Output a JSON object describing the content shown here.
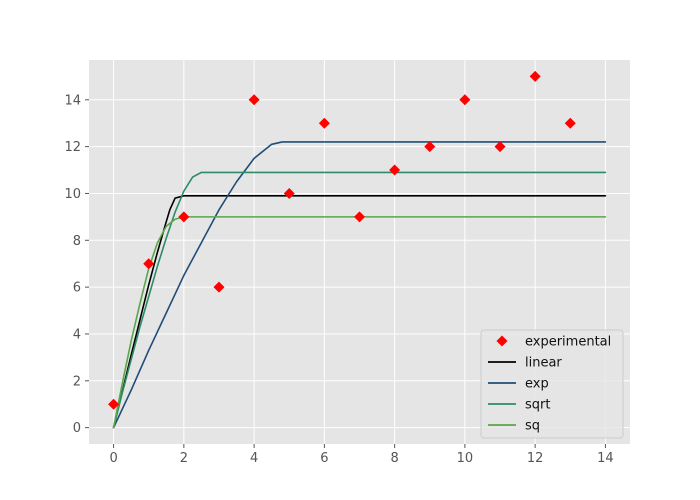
{
  "chart_data": {
    "type": "line",
    "title": "",
    "xlabel": "",
    "ylabel": "",
    "xlim": [
      -0.7,
      14.7
    ],
    "ylim": [
      -0.7,
      15.7
    ],
    "x_ticks": [
      0,
      2,
      4,
      6,
      8,
      10,
      12,
      14
    ],
    "y_ticks": [
      0,
      2,
      4,
      6,
      8,
      10,
      12,
      14
    ],
    "x_tick_labels": [
      "0",
      "2",
      "4",
      "6",
      "8",
      "10",
      "12",
      "14"
    ],
    "y_tick_labels": [
      "0",
      "2",
      "4",
      "6",
      "8",
      "10",
      "12",
      "14"
    ],
    "grid": true,
    "legend_position": "lower-right",
    "background_color": "#e5e5e5",
    "grid_color": "#ffffff",
    "scatter": {
      "name": "experimental",
      "color": "#ff0000",
      "marker": "diamond",
      "x": [
        0,
        1,
        2,
        3,
        4,
        5,
        6,
        7,
        8,
        9,
        10,
        11,
        12,
        13
      ],
      "y": [
        1,
        7,
        9,
        6,
        14,
        10,
        13,
        9,
        11,
        12,
        14,
        12,
        15,
        13
      ]
    },
    "series": [
      {
        "name": "linear",
        "color": "#000000",
        "x": [
          0,
          0.25,
          0.5,
          0.75,
          1,
          1.25,
          1.5,
          1.6,
          1.75,
          2,
          3,
          4,
          5,
          6,
          7,
          8,
          9,
          10,
          11,
          12,
          13,
          14
        ],
        "y": [
          0,
          1.55,
          3.1,
          4.6,
          6.1,
          7.5,
          8.8,
          9.3,
          9.8,
          9.9,
          9.9,
          9.9,
          9.9,
          9.9,
          9.9,
          9.9,
          9.9,
          9.9,
          9.9,
          9.9,
          9.9,
          9.9
        ]
      },
      {
        "name": "exp",
        "color": "#1f4e79",
        "x": [
          0,
          0.5,
          1,
          1.5,
          2,
          2.5,
          3,
          3.5,
          4,
          4.5,
          4.8,
          5,
          6,
          7,
          8,
          9,
          10,
          11,
          12,
          13,
          14
        ],
        "y": [
          0,
          1.6,
          3.3,
          4.9,
          6.5,
          7.9,
          9.3,
          10.5,
          11.5,
          12.1,
          12.2,
          12.2,
          12.2,
          12.2,
          12.2,
          12.2,
          12.2,
          12.2,
          12.2,
          12.2,
          12.2
        ]
      },
      {
        "name": "sqrt",
        "color": "#2e8b67",
        "x": [
          0,
          0.25,
          0.5,
          0.75,
          1,
          1.25,
          1.5,
          1.75,
          2,
          2.25,
          2.5,
          3,
          4,
          5,
          6,
          7,
          8,
          9,
          10,
          11,
          12,
          13,
          14
        ],
        "y": [
          0,
          1.5,
          2.9,
          4.3,
          5.6,
          6.9,
          8.1,
          9.2,
          10.1,
          10.7,
          10.9,
          10.9,
          10.9,
          10.9,
          10.9,
          10.9,
          10.9,
          10.9,
          10.9,
          10.9,
          10.9,
          10.9,
          10.9
        ]
      },
      {
        "name": "sq",
        "color": "#5aa64b",
        "x": [
          0,
          0.25,
          0.5,
          0.75,
          1,
          1.25,
          1.5,
          1.75,
          2,
          3,
          4,
          5,
          6,
          7,
          8,
          9,
          10,
          11,
          12,
          13,
          14
        ],
        "y": [
          0,
          1.9,
          3.7,
          5.3,
          6.8,
          7.9,
          8.6,
          8.9,
          9.0,
          9.0,
          9.0,
          9.0,
          9.0,
          9.0,
          9.0,
          9.0,
          9.0,
          9.0,
          9.0,
          9.0,
          9.0
        ]
      }
    ]
  }
}
